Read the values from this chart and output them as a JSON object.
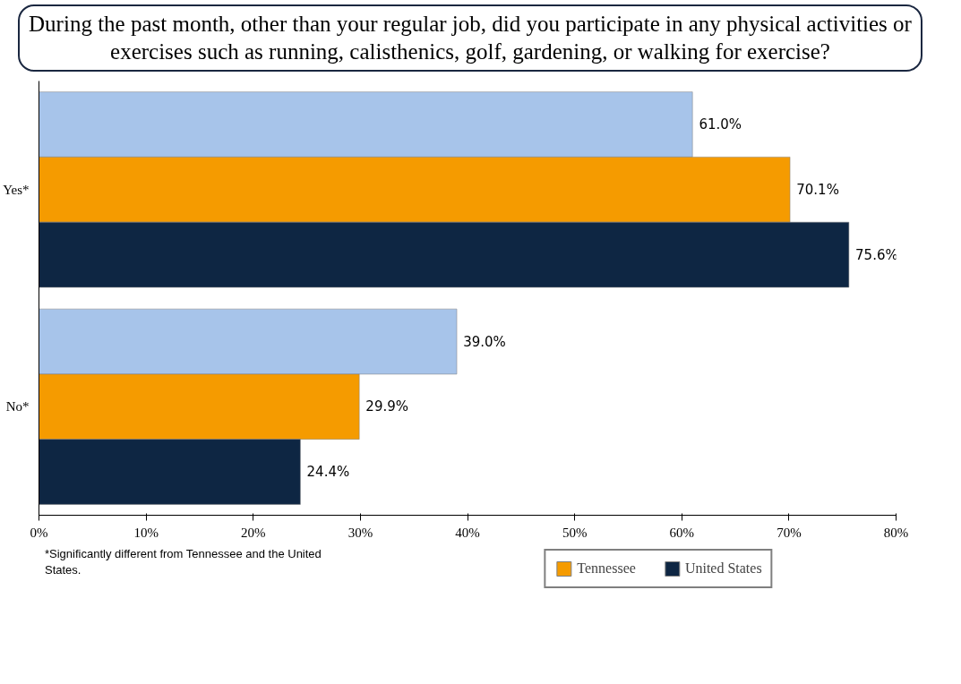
{
  "chart_data": {
    "type": "bar",
    "orientation": "horizontal",
    "title": "During the past month, other than your regular job, did you participate in any physical activities or  exercises such as running, calisthenics, golf, gardening, or walking for exercise?",
    "categories": [
      "Yes*",
      "No*"
    ],
    "series": [
      {
        "color": "#a7c4ea",
        "values": [
          61.0,
          39.0
        ],
        "value_labels": [
          "61.0%",
          "39.0%"
        ]
      },
      {
        "name": "Tennessee",
        "color": "#f59b00",
        "values": [
          70.1,
          29.9
        ],
        "value_labels": [
          "70.1%",
          "29.9%"
        ]
      },
      {
        "name": "United States",
        "color": "#0e2643",
        "values": [
          75.6,
          24.4
        ],
        "value_labels": [
          "75.6%",
          "24.4%"
        ]
      }
    ],
    "xlim": [
      0,
      80
    ],
    "xticks": [
      {
        "value": 0,
        "label": "0%"
      },
      {
        "value": 10,
        "label": "10%"
      },
      {
        "value": 20,
        "label": "20%"
      },
      {
        "value": 30,
        "label": "30%"
      },
      {
        "value": 40,
        "label": "40%"
      },
      {
        "value": 50,
        "label": "50%"
      },
      {
        "value": 60,
        "label": "60%"
      },
      {
        "value": 70,
        "label": "70%"
      },
      {
        "value": 80,
        "label": "80%"
      }
    ],
    "grid": false,
    "legend": "bottom",
    "annotations": [
      "*Significantly different from Tennessee and the United States."
    ]
  }
}
